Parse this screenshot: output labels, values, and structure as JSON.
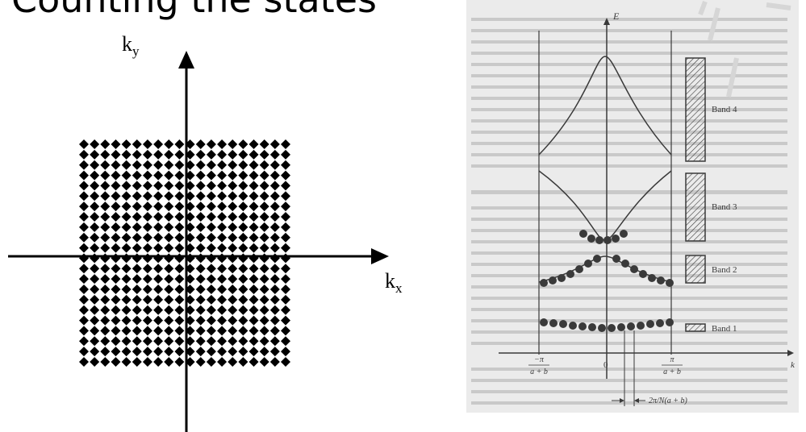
{
  "slide": {
    "title": "Counting the states"
  },
  "kspace": {
    "x_axis_label": "k",
    "x_axis_subscript": "x",
    "y_axis_label": "k",
    "y_axis_subscript": "y",
    "grid_columns": 20,
    "grid_rows": 22,
    "dot_color": "#000000"
  },
  "band_diagram": {
    "y_axis_label": "E",
    "x_axis_label": "k",
    "tick_left_numerator": "−π",
    "tick_left_denominator": "a + b",
    "tick_zero": "0",
    "tick_right_numerator": "π",
    "tick_right_denominator": "a + b",
    "spacing_label": "2π/N(a + b)",
    "bands": [
      {
        "name": "Band 4"
      },
      {
        "name": "Band 3"
      },
      {
        "name": "Band 2"
      },
      {
        "name": "Band 1"
      }
    ],
    "panel_color": "#ebebeb",
    "ink_color": "#3a3a3a"
  }
}
